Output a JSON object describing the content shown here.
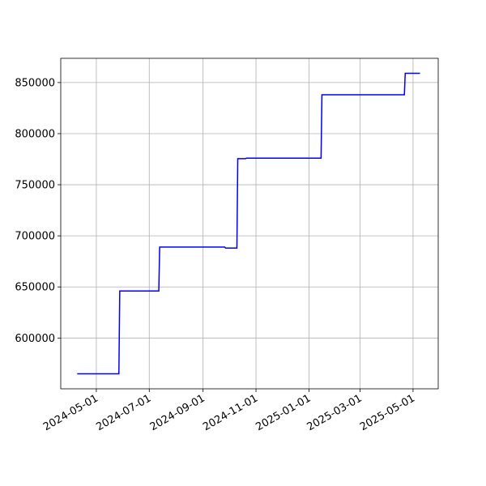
{
  "chart_data": {
    "type": "line",
    "x": [
      "2024-04-09",
      "2024-05-27",
      "2024-05-28",
      "2024-07-12",
      "2024-07-13",
      "2024-09-26",
      "2024-09-27",
      "2024-10-10",
      "2024-10-11",
      "2024-10-20",
      "2024-10-21",
      "2025-01-15",
      "2025-01-16",
      "2025-04-21",
      "2025-04-22",
      "2025-05-09"
    ],
    "series": [
      {
        "color": "#0000ff",
        "values": [
          565000,
          565000,
          646000,
          646000,
          689000,
          689000,
          688000,
          688000,
          775500,
          775500,
          776000,
          776000,
          838000,
          838000,
          859000,
          859000
        ]
      }
    ],
    "xlim": [
      "2024-03-21",
      "2025-05-30"
    ],
    "xticks": [
      "2024-05-01",
      "2024-07-01",
      "2024-09-01",
      "2024-11-01",
      "2025-01-01",
      "2025-03-01",
      "2025-05-01"
    ],
    "ylim": [
      550300,
      873700
    ],
    "yticks": [
      600000,
      650000,
      700000,
      750000,
      800000,
      850000
    ],
    "grid": true
  }
}
